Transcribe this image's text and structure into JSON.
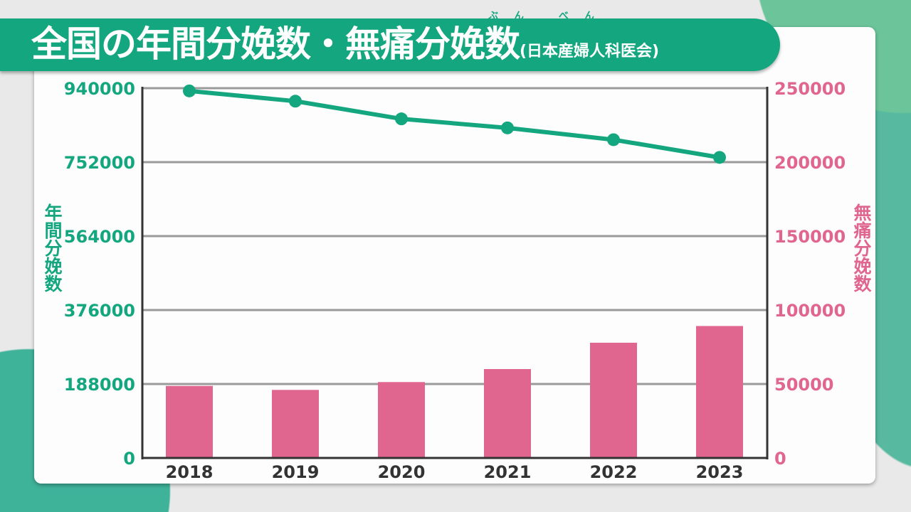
{
  "title": "全国の年間分娩数・無痛分娩数",
  "title_source": "(日本産婦人科医会)",
  "ruby": "ぶん べん",
  "colors": {
    "line": "#14a77f",
    "bar": "#e0668f",
    "banner": "#14a77f",
    "grid": "#9a9a9a",
    "axis": "#333333"
  },
  "chart_data": {
    "type": "bar+line",
    "categories": [
      "2018",
      "2019",
      "2020",
      "2021",
      "2022",
      "2023"
    ],
    "series": [
      {
        "name": "年間分娩数",
        "type": "line",
        "axis": "left",
        "values": [
          933000,
          907000,
          862000,
          839000,
          809000,
          764000
        ]
      },
      {
        "name": "無痛分娩数",
        "type": "bar",
        "axis": "right",
        "values": [
          48700,
          46000,
          51300,
          60100,
          77900,
          89200
        ]
      }
    ],
    "ylabel_left": "年間分娩数",
    "ylabel_right": "無痛分娩数",
    "ylim_left": [
      0,
      940000
    ],
    "ylim_right": [
      0,
      250000
    ],
    "yticks_left": [
      "0",
      "188000",
      "376000",
      "564000",
      "752000",
      "940000"
    ],
    "yticks_right": [
      "0",
      "50000",
      "100000",
      "150000",
      "200000",
      "250000"
    ],
    "grid": true,
    "legend": "none"
  }
}
